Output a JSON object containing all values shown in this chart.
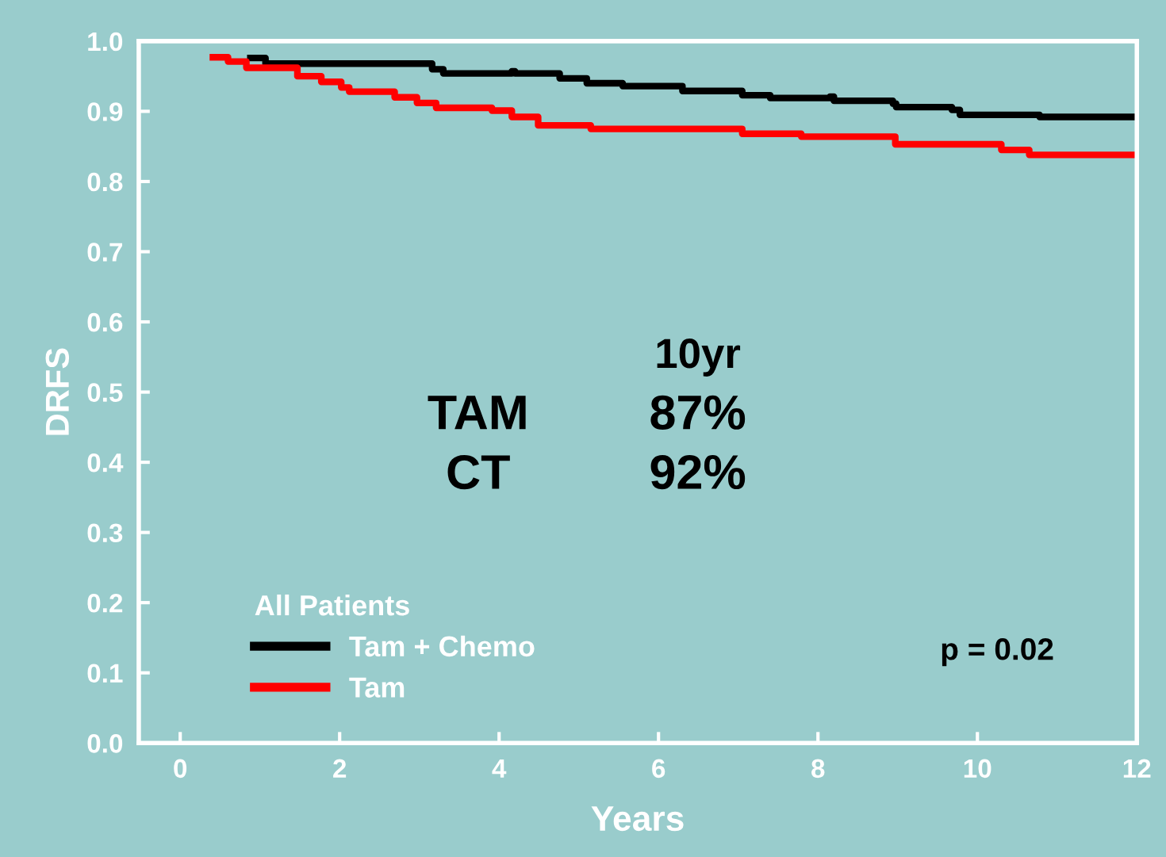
{
  "chart_data": {
    "type": "step",
    "xlabel": "Years",
    "ylabel": "DRFS",
    "legend_title": "All Patients",
    "legend": "bottom left",
    "grid": false,
    "marker": "none",
    "line_style": "solid",
    "xlim": [
      -0.52,
      12
    ],
    "xticks": [
      0,
      2,
      4,
      6,
      8,
      10,
      12
    ],
    "ylim": [
      0,
      1.0
    ],
    "yticks": [
      {
        "value": 0,
        "label": "0.0"
      },
      0.1,
      0.2,
      0.3,
      0.4,
      0.5,
      0.6,
      0.7,
      0.8,
      0.9,
      {
        "value": 1,
        "label": "1.0"
      }
    ],
    "series": [
      {
        "name": "Tam + Chemo",
        "color": "#000000",
        "x": [
          0.88,
          1.07,
          3.16,
          3.3,
          4.16,
          4.2,
          4.76,
          5.1,
          5.55,
          6.3,
          7.05,
          7.4,
          8.15,
          8.2,
          8.94,
          8.98,
          9.68,
          9.78,
          10.78,
          12
        ],
        "values": [
          0.976,
          0.968,
          0.96,
          0.954,
          0.957,
          0.954,
          0.947,
          0.94,
          0.936,
          0.929,
          0.923,
          0.919,
          0.921,
          0.915,
          0.911,
          0.906,
          0.902,
          0.895,
          0.892,
          0.892
        ]
      },
      {
        "name": "Tam",
        "color": "#ff0000",
        "x": [
          0.41,
          0.6,
          0.83,
          1.47,
          1.77,
          2.02,
          2.12,
          2.69,
          2.97,
          3.21,
          3.91,
          4.16,
          4.49,
          5.15,
          7.05,
          7.79,
          8.97,
          10.3,
          10.65,
          12
        ],
        "values": [
          0.977,
          0.971,
          0.962,
          0.95,
          0.942,
          0.934,
          0.928,
          0.92,
          0.912,
          0.905,
          0.901,
          0.892,
          0.88,
          0.875,
          0.868,
          0.864,
          0.853,
          0.845,
          0.838,
          0.838
        ]
      }
    ],
    "annotations": [
      "10yr",
      "TAM",
      "87%",
      "CT",
      "92%",
      "p = 0.02"
    ]
  }
}
